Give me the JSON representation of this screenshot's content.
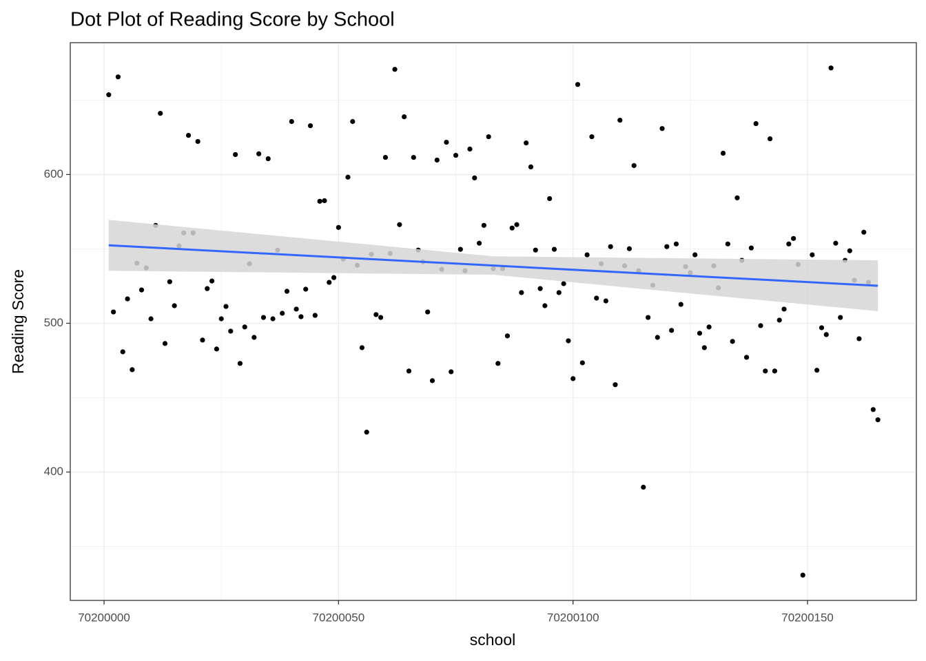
{
  "chart_data": {
    "type": "scatter",
    "title": "Dot Plot of Reading Score by School",
    "x_label": "school",
    "y_label": "Reading Score",
    "x": [
      70200001,
      70200002,
      70200003,
      70200004,
      70200005,
      70200006,
      70200007,
      70200008,
      70200009,
      70200010,
      70200011,
      70200012,
      70200013,
      70200014,
      70200015,
      70200016,
      70200017,
      70200018,
      70200019,
      70200020,
      70200021,
      70200022,
      70200023,
      70200024,
      70200025,
      70200026,
      70200027,
      70200028,
      70200029,
      70200030,
      70200031,
      70200032,
      70200033,
      70200034,
      70200035,
      70200036,
      70200037,
      70200038,
      70200039,
      70200040,
      70200041,
      70200042,
      70200043,
      70200044,
      70200045,
      70200046,
      70200047,
      70200048,
      70200049,
      70200050,
      70200051,
      70200052,
      70200053,
      70200054,
      70200055,
      70200056,
      70200057,
      70200058,
      70200059,
      70200060,
      70200061,
      70200062,
      70200063,
      70200064,
      70200065,
      70200066,
      70200067,
      70200068,
      70200069,
      70200070,
      70200071,
      70200072,
      70200073,
      70200074,
      70200075,
      70200076,
      70200077,
      70200078,
      70200079,
      70200080,
      70200081,
      70200082,
      70200083,
      70200084,
      70200085,
      70200086,
      70200087,
      70200088,
      70200089,
      70200090,
      70200091,
      70200092,
      70200093,
      70200094,
      70200095,
      70200096,
      70200097,
      70200098,
      70200099,
      70200100,
      70200101,
      70200102,
      70200103,
      70200104,
      70200105,
      70200106,
      70200107,
      70200108,
      70200109,
      70200110,
      70200111,
      70200112,
      70200113,
      70200114,
      70200115,
      70200116,
      70200117,
      70200118,
      70200119,
      70200120,
      70200121,
      70200122,
      70200123,
      70200124,
      70200125,
      70200126,
      70200127,
      70200128,
      70200129,
      70200130,
      70200131,
      70200132,
      70200133,
      70200134,
      70200135,
      70200136,
      70200137,
      70200138,
      70200139,
      70200140,
      70200141,
      70200142,
      70200143,
      70200144,
      70200145,
      70200146,
      70200147,
      70200148,
      70200149,
      70200151,
      70200152,
      70200153,
      70200154,
      70200155,
      70200156,
      70200157,
      70200158,
      70200159,
      70200160,
      70200161,
      70200162,
      70200163,
      70200164,
      70200165
    ],
    "values": [
      653.6,
      507.6,
      665.6,
      480.8,
      516.4,
      468.8,
      540.4,
      522.4,
      537.2,
      503.0,
      565.8,
      641.1,
      486.4,
      527.9,
      511.8,
      552.0,
      560.7,
      626.3,
      560.7,
      622.2,
      488.7,
      523.3,
      528.4,
      482.7,
      503.0,
      511.3,
      494.7,
      613.4,
      473.0,
      497.5,
      540.0,
      490.5,
      613.9,
      503.9,
      610.6,
      503.0,
      549.2,
      506.7,
      521.5,
      635.6,
      509.5,
      504.4,
      522.9,
      632.8,
      505.3,
      582.0,
      582.4,
      527.5,
      530.7,
      564.4,
      543.2,
      598.2,
      635.6,
      539.0,
      483.6,
      426.8,
      546.4,
      505.8,
      503.9,
      611.5,
      546.9,
      670.7,
      566.3,
      638.8,
      467.9,
      611.5,
      549.2,
      541.3,
      507.6,
      461.4,
      609.7,
      536.3,
      621.7,
      467.4,
      612.9,
      549.7,
      535.3,
      617.1,
      597.7,
      553.8,
      565.8,
      625.4,
      536.7,
      473.0,
      536.7,
      491.5,
      564.0,
      566.3,
      520.6,
      621.2,
      605.1,
      549.2,
      523.3,
      511.8,
      583.8,
      549.7,
      520.6,
      526.6,
      488.2,
      462.8,
      660.5,
      473.4,
      546.0,
      625.4,
      516.9,
      540.0,
      515.0,
      551.5,
      458.7,
      636.5,
      538.6,
      550.1,
      606.0,
      535.3,
      389.8,
      503.9,
      525.6,
      490.5,
      630.9,
      551.5,
      495.2,
      553.3,
      512.7,
      538.1,
      534.0,
      546.0,
      493.3,
      483.6,
      497.5,
      538.6,
      523.8,
      614.3,
      553.3,
      487.8,
      584.3,
      542.3,
      477.1,
      550.6,
      634.2,
      498.4,
      467.9,
      624.0,
      467.9,
      502.1,
      509.5,
      553.3,
      557.0,
      539.5,
      330.7,
      546.0,
      468.4,
      497.0,
      492.4,
      671.6,
      553.8,
      503.9,
      542.3,
      548.7,
      528.9,
      489.6,
      561.2,
      527.5,
      442.0,
      435.1
    ],
    "color": "#000000",
    "smooth": {
      "x": [
        70200001,
        70200083,
        70200165
      ],
      "y": [
        552.4,
        538.8,
        525.2
      ],
      "lower": [
        535.3,
        532.6,
        508.1
      ],
      "upper": [
        569.5,
        545.0,
        542.3
      ],
      "color": "#3366ff",
      "fill": "#d6d6d6"
    },
    "xlim": [
      70199992.8,
      70200173.2
    ],
    "ylim": [
      313.7,
      688.6
    ],
    "xticks": [
      70200000,
      70200050,
      70200100,
      70200150
    ],
    "yticks": [
      400,
      500,
      600
    ],
    "xminor": [
      70200025,
      70200075,
      70200125
    ],
    "yminor": [
      350,
      450,
      550,
      650
    ],
    "grid": true
  }
}
